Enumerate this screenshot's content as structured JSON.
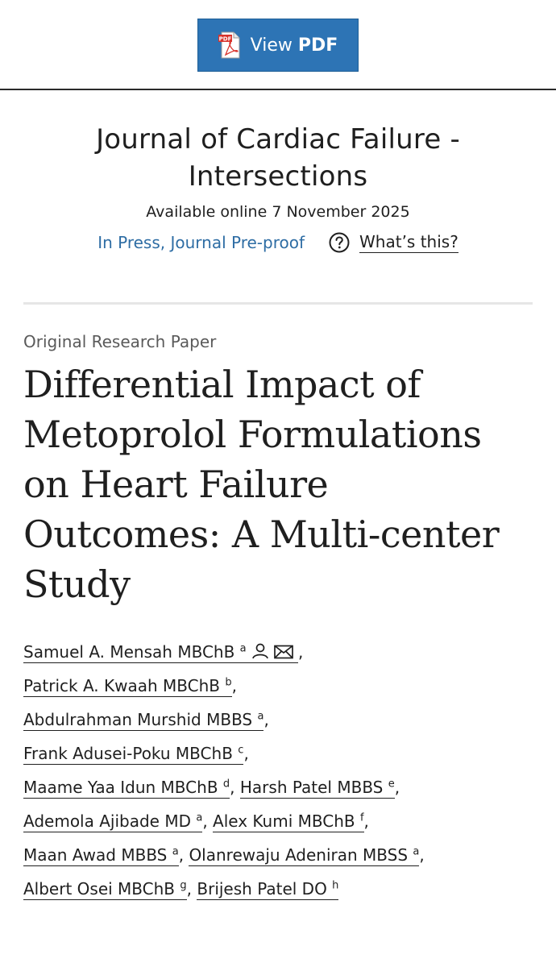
{
  "toolbar": {
    "view_label": "View",
    "pdf_label": "PDF",
    "pdf_icon_text": "PDF",
    "brand_red": "#d8322b",
    "brand_blue": "#2d74b5"
  },
  "journal": {
    "title": "Journal of Cardiac Failure - Intersections",
    "available": "Available online 7 November 2025",
    "status_link": "In Press, Journal Pre-proof",
    "help_label": "What’s this?"
  },
  "article": {
    "type": "Original Research Paper",
    "title": "Differential Impact of Metoprolol Formulations on Heart Failure Outcomes: A Multi-center Study"
  },
  "authors": [
    {
      "name": "Samuel A. Mensah MBChB",
      "sup": "a",
      "icons": [
        "person-icon",
        "envelope-icon"
      ],
      "sep": ","
    },
    {
      "name": "Patrick A. Kwaah MBChB",
      "sup": "b",
      "sep": ","
    },
    {
      "name": "Abdulrahman Murshid MBBS",
      "sup": "a",
      "sep": ","
    },
    {
      "name": "Frank Adusei-Poku MBChB",
      "sup": "c",
      "sep": ","
    },
    {
      "name": "Maame Yaa Idun MBChB",
      "sup": "d",
      "sep": ","
    },
    {
      "name": "Harsh Patel MBBS",
      "sup": "e",
      "sep": ","
    },
    {
      "name": "Ademola Ajibade MD",
      "sup": "a",
      "sep": ","
    },
    {
      "name": "Alex Kumi MBChB",
      "sup": "f",
      "sep": ","
    },
    {
      "name": "Maan Awad MBBS",
      "sup": "a",
      "sep": ","
    },
    {
      "name": "Olanrewaju Adeniran MBSS",
      "sup": "a",
      "sep": ","
    },
    {
      "name": "Albert Osei MBChB",
      "sup": "g",
      "sep": ","
    },
    {
      "name": "Brijesh Patel DO",
      "sup": "h",
      "sep": ""
    }
  ]
}
